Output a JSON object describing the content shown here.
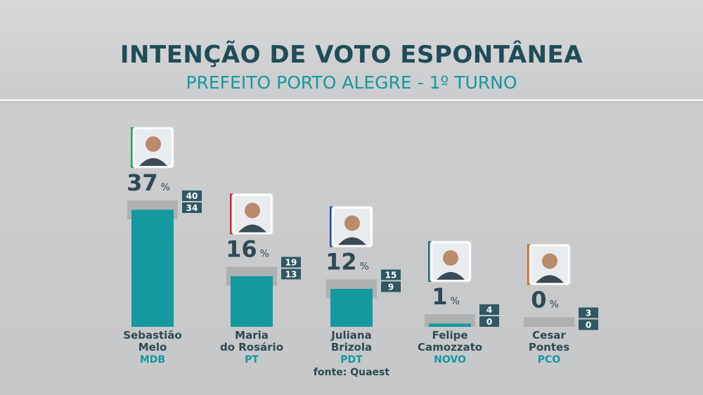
{
  "header": {
    "title": "INTENÇÃO DE VOTO ESPONTÂNEA",
    "subtitle": "PREFEITO PORTO ALEGRE - 1º TURNO"
  },
  "source": "fonte: Quaest",
  "colors": {
    "bar": "#14999f",
    "range": "#a9abad",
    "marker_box": "#2e5963",
    "name": "#2d4a52",
    "party": "#14999f",
    "value": "#2d4a52"
  },
  "chart_data": {
    "type": "bar",
    "title": "INTENÇÃO DE VOTO ESPONTÂNEA",
    "subtitle": "PREFEITO PORTO ALEGRE - 1º TURNO",
    "ylim": [
      0,
      40
    ],
    "grid": false,
    "categories": [
      {
        "name_line1": "Sebastião",
        "name_line2": "Melo",
        "party": "MDB",
        "party_color": "#27a85a",
        "value": 37,
        "upper": 40,
        "lower": 34,
        "avatar": "avatar-sebastiao-melo"
      },
      {
        "name_line1": "Maria",
        "name_line2": "do Rosário",
        "party": "PT",
        "party_color": "#d62b36",
        "value": 16,
        "upper": 19,
        "lower": 13,
        "avatar": "avatar-maria-do-rosario"
      },
      {
        "name_line1": "Juliana",
        "name_line2": "Brizola",
        "party": "PDT",
        "party_color": "#1e4fb0",
        "value": 12,
        "upper": 15,
        "lower": 9,
        "avatar": "avatar-juliana-brizola"
      },
      {
        "name_line1": "Felipe",
        "name_line2": "Camozzato",
        "party": "NOVO",
        "party_color": "#1f6d72",
        "value": 1,
        "upper": 4,
        "lower": 0,
        "avatar": "avatar-felipe-camozzato"
      },
      {
        "name_line1": "Cesar",
        "name_line2": "Pontes",
        "party": "PCO",
        "party_color": "#d2661f",
        "value": 0,
        "upper": 3,
        "lower": 0,
        "avatar": "avatar-cesar-pontes"
      }
    ],
    "value_suffix": "%"
  }
}
